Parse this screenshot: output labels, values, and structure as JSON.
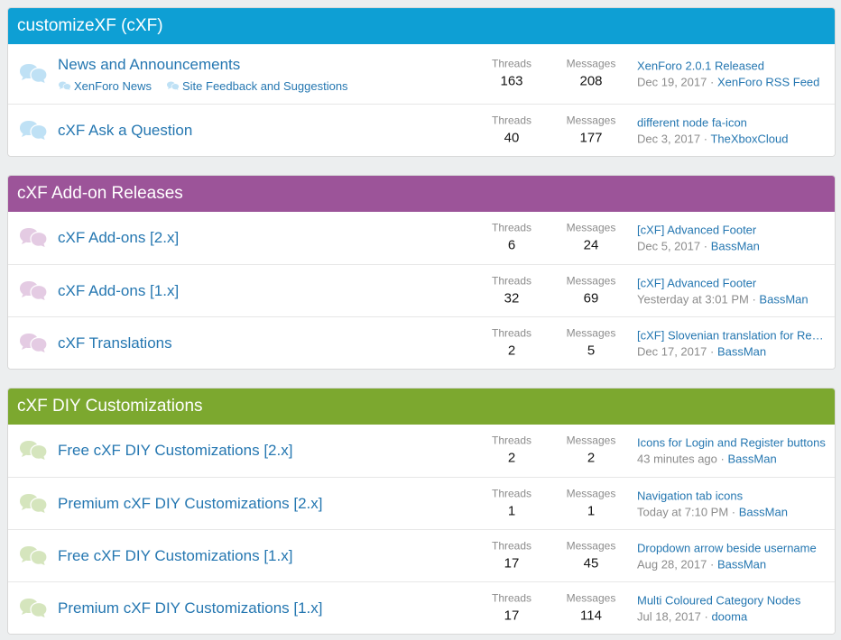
{
  "colors": {
    "cat1": "#0e9fd4",
    "cat2": "#9c5499",
    "cat3": "#7ca82f",
    "icon1": "#bfe1f5",
    "icon2": "#e4cbe3",
    "icon3": "#d5e5bd",
    "link": "#2577b1"
  },
  "labels": {
    "threads": "Threads",
    "messages": "Messages",
    "sep": "·"
  },
  "categories": [
    {
      "title": "customizeXF (cXF)",
      "nodes": [
        {
          "title": "News and Announcements",
          "subforums": [
            "XenForo News",
            "Site Feedback and Suggestions"
          ],
          "threads": "163",
          "messages": "208",
          "latest_title": "XenForo 2.0.1 Released",
          "latest_date": "Dec 19, 2017",
          "latest_user": "XenForo RSS Feed"
        },
        {
          "title": "cXF Ask a Question",
          "threads": "40",
          "messages": "177",
          "latest_title": "different node fa-icon",
          "latest_date": "Dec 3, 2017",
          "latest_user": "TheXboxCloud"
        }
      ]
    },
    {
      "title": "cXF Add-on Releases",
      "nodes": [
        {
          "title": "cXF Add-ons [2.x]",
          "threads": "6",
          "messages": "24",
          "latest_title": "[cXF] Advanced Footer",
          "latest_date": "Dec 5, 2017",
          "latest_user": "BassMan"
        },
        {
          "title": "cXF Add-ons [1.x]",
          "threads": "32",
          "messages": "69",
          "latest_title": "[cXF] Advanced Footer",
          "latest_date": "Yesterday at 3:01 PM",
          "latest_user": "BassMan"
        },
        {
          "title": "cXF Translations",
          "threads": "2",
          "messages": "5",
          "latest_title": "[cXF] Slovenian translation for Resource Manager",
          "latest_date": "Dec 17, 2017",
          "latest_user": "BassMan"
        }
      ]
    },
    {
      "title": "cXF DIY Customizations",
      "nodes": [
        {
          "title": "Free cXF DIY Customizations [2.x]",
          "threads": "2",
          "messages": "2",
          "latest_title": "Icons for Login and Register buttons",
          "latest_date": "43 minutes ago",
          "latest_user": "BassMan"
        },
        {
          "title": "Premium cXF DIY Customizations [2.x]",
          "threads": "1",
          "messages": "1",
          "latest_title": "Navigation tab icons",
          "latest_date": "Today at 7:10 PM",
          "latest_user": "BassMan"
        },
        {
          "title": "Free cXF DIY Customizations [1.x]",
          "threads": "17",
          "messages": "45",
          "latest_title": "Dropdown arrow beside username",
          "latest_date": "Aug 28, 2017",
          "latest_user": "BassMan"
        },
        {
          "title": "Premium cXF DIY Customizations [1.x]",
          "threads": "17",
          "messages": "114",
          "latest_title": "Multi Coloured Category Nodes",
          "latest_date": "Jul 18, 2017",
          "latest_user": "dooma"
        }
      ]
    }
  ]
}
